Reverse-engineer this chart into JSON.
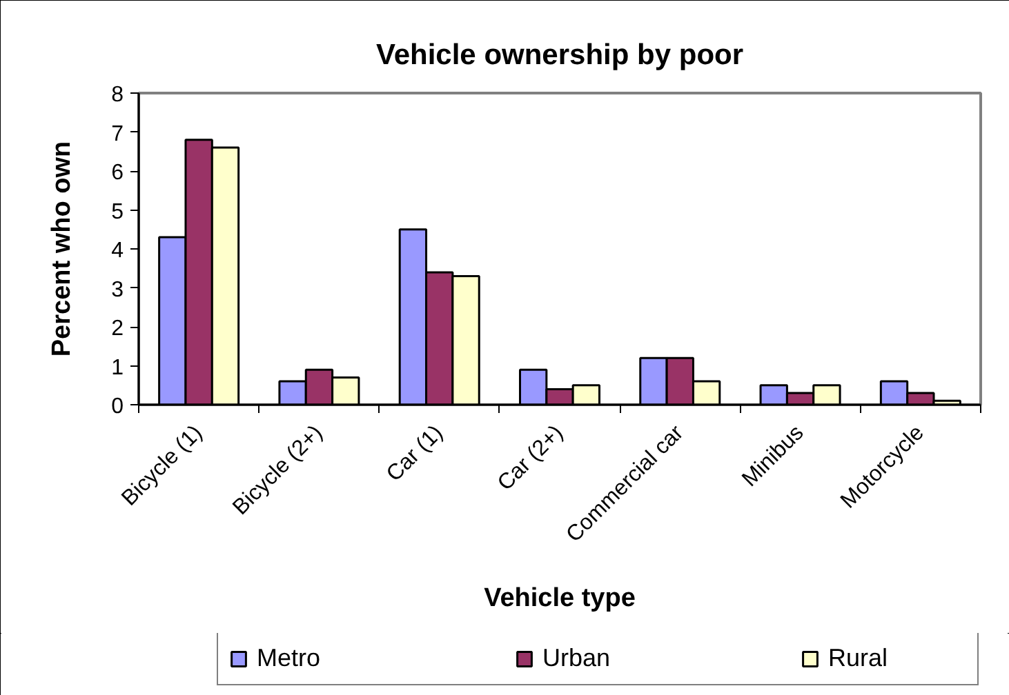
{
  "chart_data": {
    "type": "bar",
    "title": "Vehicle ownership by poor",
    "xlabel": "Vehicle type",
    "ylabel": "Percent who own",
    "categories": [
      "Bicycle (1)",
      "Bicycle (2+)",
      "Car (1)",
      "Car (2+)",
      "Commercial car",
      "Minibus",
      "Motorcycle"
    ],
    "series": [
      {
        "name": "Metro",
        "color": "#9999ff",
        "values": [
          4.3,
          0.6,
          4.5,
          0.9,
          1.2,
          0.5,
          0.6
        ]
      },
      {
        "name": "Urban",
        "color": "#993366",
        "values": [
          6.8,
          0.9,
          3.4,
          0.4,
          1.2,
          0.3,
          0.3
        ]
      },
      {
        "name": "Rural",
        "color": "#ffffcc",
        "values": [
          6.6,
          0.7,
          3.3,
          0.5,
          0.6,
          0.5,
          0.1
        ]
      }
    ],
    "ylim": [
      0,
      8
    ],
    "yticks": [
      0,
      1,
      2,
      3,
      4,
      5,
      6,
      7,
      8
    ],
    "legend": "bottom"
  }
}
